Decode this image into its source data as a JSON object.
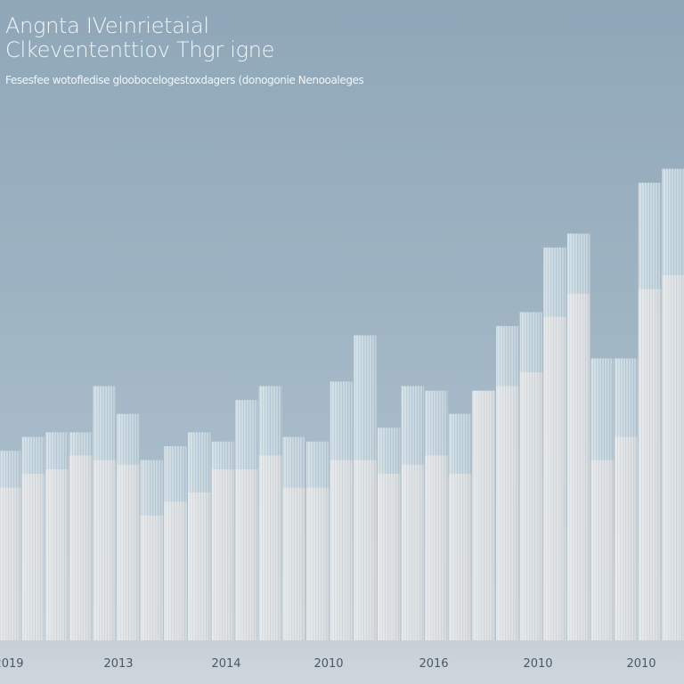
{
  "header": {
    "title_lines": [
      "Angnta IVeinrietaial",
      "Clkevententtiov Thgr igne"
    ],
    "subtitle": "Fesesfee wotofledise gloobocelogestoxdagers (donogonie Nenooaleges"
  },
  "colors": {
    "background": "#9fb4c3",
    "bar_base": "#dfe2e4",
    "bar_top": "#c6d6df",
    "floor": "#cbd3d9"
  },
  "chart_data": {
    "type": "bar",
    "title": "Angnta IVeinrietaial Clkevententtiov Thgr igne",
    "subtitle": "Fesesfee wotofledise gloobocelogestoxdagers (donogonie Nenooaleges",
    "x_tick_labels": [
      "2019",
      "2013",
      "2014",
      "2010",
      "2016",
      "2010",
      "2010"
    ],
    "ylim": [
      0,
      100
    ],
    "grid": false,
    "legend": "none",
    "series": [
      {
        "values": [
          41,
          44,
          45,
          45,
          55,
          49,
          39,
          42,
          45,
          43,
          52,
          55,
          44,
          43,
          56,
          66,
          46,
          55,
          54,
          49,
          54,
          68,
          71,
          85,
          88,
          61,
          61,
          99,
          102
        ],
        "base_values": [
          33,
          36,
          37,
          40,
          39,
          38,
          27,
          30,
          32,
          37,
          37,
          40,
          33,
          33,
          39,
          39,
          36,
          38,
          40,
          36,
          54,
          55,
          58,
          70,
          75,
          39,
          44,
          76,
          79
        ]
      }
    ]
  }
}
